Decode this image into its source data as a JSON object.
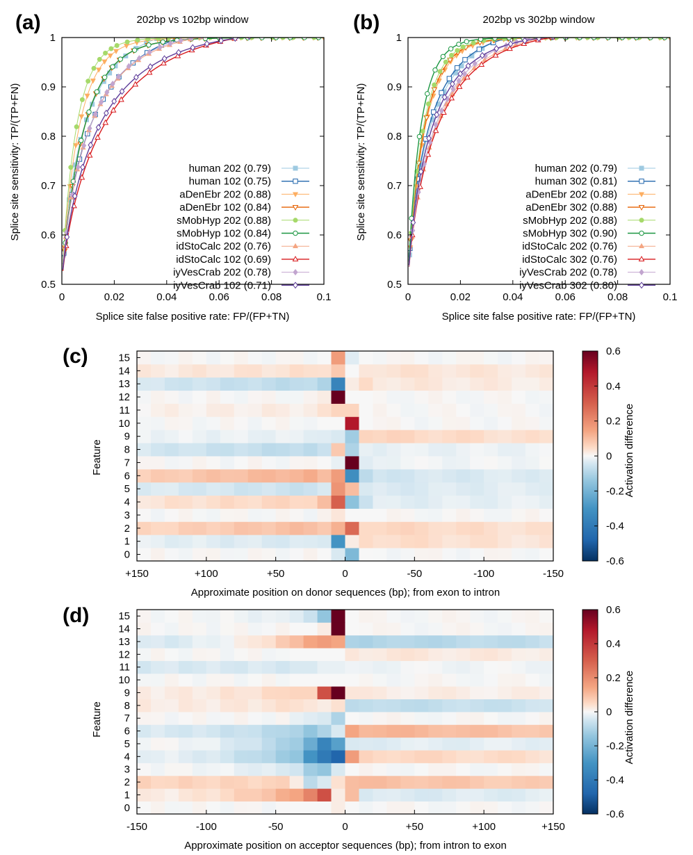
{
  "chart_data": [
    {
      "id": "a",
      "type": "line",
      "panel_label": "(a)",
      "title": "202bp vs 102bp window",
      "xlabel": "Splice site false positive rate: FP/(FP+TN)",
      "ylabel": "Splice site sensitivity: TP/(TP+FN)",
      "xlim": [
        0,
        0.1
      ],
      "ylim": [
        0.5,
        1
      ],
      "xticks": [
        "0",
        "0.02",
        "0.04",
        "0.06",
        "0.08",
        "0.1"
      ],
      "yticks": [
        "0.5",
        "0.6",
        "0.7",
        "0.8",
        "0.9",
        "1"
      ],
      "legend_position": "bottom-right",
      "series": [
        {
          "name": "human 202 (0.79)",
          "color": "#9ecae1",
          "marker": "square-filled",
          "width": 1,
          "k": 0.0095,
          "p": 0.77,
          "ymax": 1.03
        },
        {
          "name": "human 102 (0.75)",
          "color": "#2166ac",
          "marker": "square-open",
          "width": 1.4,
          "k": 0.0125,
          "p": 0.74,
          "ymax": 1.04
        },
        {
          "name": "aDenEbr 202 (0.88)",
          "color": "#fdae61",
          "marker": "tri-down-filled",
          "width": 1,
          "k": 0.0065,
          "p": 0.92,
          "ymax": 1.0
        },
        {
          "name": "aDenEbr 102 (0.84)",
          "color": "#e66101",
          "marker": "tri-down-open",
          "width": 1.4,
          "k": 0.0085,
          "p": 0.92,
          "ymax": 1.0
        },
        {
          "name": "sMobHyp 202 (0.88)",
          "color": "#a6d96a",
          "marker": "circle-filled",
          "width": 1,
          "k": 0.0055,
          "p": 0.92,
          "ymax": 1.0
        },
        {
          "name": "sMobHyp 102 (0.84)",
          "color": "#1a9641",
          "marker": "circle-open",
          "width": 1.4,
          "k": 0.0085,
          "p": 0.92,
          "ymax": 1.0
        },
        {
          "name": "idStoCalc 202 (0.76)",
          "color": "#f4a582",
          "marker": "tri-up-filled",
          "width": 1,
          "k": 0.0115,
          "p": 0.78,
          "ymax": 1.02
        },
        {
          "name": "idStoCalc 102 (0.69)",
          "color": "#d7191c",
          "marker": "tri-up-open",
          "width": 1.4,
          "k": 0.0175,
          "p": 0.78,
          "ymax": 1.03
        },
        {
          "name": "iyVesCrab 202 (0.78)",
          "color": "#c2a5cf",
          "marker": "diamond-filled",
          "width": 1,
          "k": 0.0115,
          "p": 0.8,
          "ymax": 1.02
        },
        {
          "name": "iyVesCrab 102 (0.71)",
          "color": "#5e3c99",
          "marker": "diamond-open",
          "width": 1.4,
          "k": 0.015,
          "p": 0.78,
          "ymax": 1.02
        }
      ]
    },
    {
      "id": "b",
      "type": "line",
      "panel_label": "(b)",
      "title": "202bp vs 302bp window",
      "xlabel": "Splice site false positive rate: FP/(FP+TN)",
      "ylabel": "Splice site sensitivity: TP/(TP+FN)",
      "xlim": [
        0,
        0.1
      ],
      "ylim": [
        0.5,
        1
      ],
      "xticks": [
        "0",
        "0.02",
        "0.04",
        "0.06",
        "0.08",
        "0.1"
      ],
      "yticks": [
        "0.5",
        "0.6",
        "0.7",
        "0.8",
        "0.9",
        "1"
      ],
      "legend_position": "bottom-right",
      "series": [
        {
          "name": "human 202 (0.79)",
          "color": "#9ecae1",
          "marker": "square-filled",
          "width": 1,
          "k": 0.0095,
          "p": 0.77,
          "ymax": 1.03
        },
        {
          "name": "human 302 (0.81)",
          "color": "#2166ac",
          "marker": "square-open",
          "width": 1.4,
          "k": 0.0085,
          "p": 0.78,
          "ymax": 1.02
        },
        {
          "name": "aDenEbr 202 (0.88)",
          "color": "#fdae61",
          "marker": "tri-down-filled",
          "width": 1,
          "k": 0.0065,
          "p": 0.92,
          "ymax": 1.0
        },
        {
          "name": "aDenEbr 302 (0.88)",
          "color": "#e66101",
          "marker": "tri-down-open",
          "width": 1.4,
          "k": 0.0062,
          "p": 0.92,
          "ymax": 1.0
        },
        {
          "name": "sMobHyp 202 (0.88)",
          "color": "#a6d96a",
          "marker": "circle-filled",
          "width": 1,
          "k": 0.0058,
          "p": 0.92,
          "ymax": 1.0
        },
        {
          "name": "sMobHyp 302 (0.90)",
          "color": "#1a9641",
          "marker": "circle-open",
          "width": 1.4,
          "k": 0.0048,
          "p": 0.92,
          "ymax": 1.0
        },
        {
          "name": "idStoCalc 202 (0.76)",
          "color": "#f4a582",
          "marker": "tri-up-filled",
          "width": 1,
          "k": 0.0115,
          "p": 0.78,
          "ymax": 1.02
        },
        {
          "name": "idStoCalc 302 (0.76)",
          "color": "#d7191c",
          "marker": "tri-up-open",
          "width": 1.4,
          "k": 0.012,
          "p": 0.78,
          "ymax": 1.02
        },
        {
          "name": "iyVesCrab 202 (0.78)",
          "color": "#c2a5cf",
          "marker": "diamond-filled",
          "width": 1,
          "k": 0.011,
          "p": 0.8,
          "ymax": 1.02
        },
        {
          "name": "iyVesCrab 302 (0.80)",
          "color": "#5e3c99",
          "marker": "diamond-open",
          "width": 1.4,
          "k": 0.0095,
          "p": 0.8,
          "ymax": 1.01
        }
      ]
    },
    {
      "id": "c",
      "type": "heatmap",
      "panel_label": "(c)",
      "xlabel": "Approximate position on donor sequences (bp); from exon to intron",
      "ylabel": "Feature",
      "xtick_labels": [
        "+150",
        "+100",
        "+50",
        "0",
        "-50",
        "-100",
        "-150"
      ],
      "xtick_positions": [
        150,
        100,
        50,
        0,
        -50,
        -100,
        -150
      ],
      "x_range": [
        150,
        -150
      ],
      "n_columns": 30,
      "center_column": 14,
      "rows": [
        "0",
        "1",
        "2",
        "3",
        "4",
        "5",
        "6",
        "7",
        "8",
        "9",
        "10",
        "11",
        "12",
        "13",
        "14",
        "15"
      ],
      "colorbar_label": "Activation difference",
      "colorbar_ticks": [
        "0.6",
        "0.4",
        "0.2",
        "0",
        "-0.2",
        "-0.4",
        "-0.6"
      ],
      "colorbar_range": [
        -0.6,
        0.6
      ],
      "row_profiles": [
        {
          "feature": 0,
          "left": 0.0,
          "c13": 0.0,
          "c14": -0.04,
          "c15": -0.18,
          "c16": 0.0,
          "right": 0.0,
          "slope": 0
        },
        {
          "feature": 1,
          "left": -0.04,
          "c13": -0.04,
          "c14": -0.3,
          "c15": 0.02,
          "c16": 0.05,
          "right": 0.05,
          "slope": 0
        },
        {
          "feature": 2,
          "left": 0.1,
          "c13": 0.08,
          "c14": 0.12,
          "c15": 0.28,
          "c16": 0.05,
          "right": 0.06,
          "slope": 0
        },
        {
          "feature": 3,
          "left": 0.0,
          "c13": 0.01,
          "c14": 0.03,
          "c15": 0.0,
          "c16": 0.0,
          "right": 0.0,
          "slope": 0
        },
        {
          "feature": 4,
          "left": 0.06,
          "c13": 0.1,
          "c14": 0.3,
          "c15": -0.15,
          "c16": -0.06,
          "right": -0.03,
          "slope": 0
        },
        {
          "feature": 5,
          "left": -0.06,
          "c13": -0.04,
          "c14": 0.18,
          "c15": 0.1,
          "c16": -0.04,
          "right": -0.04,
          "slope": 0
        },
        {
          "feature": 6,
          "left": 0.12,
          "c13": 0.1,
          "c14": 0.16,
          "c15": -0.32,
          "c16": -0.08,
          "right": -0.05,
          "slope": 0
        },
        {
          "feature": 7,
          "left": 0.0,
          "c13": 0.0,
          "c14": -0.02,
          "c15": 0.65,
          "c16": -0.03,
          "right": -0.01,
          "slope": 0
        },
        {
          "feature": 8,
          "left": -0.08,
          "c13": -0.06,
          "c14": 0.08,
          "c15": -0.1,
          "c16": -0.02,
          "right": -0.02,
          "slope": 0
        },
        {
          "feature": 9,
          "left": -0.02,
          "c13": -0.03,
          "c14": -0.04,
          "c15": -0.12,
          "c16": 0.06,
          "right": 0.06,
          "slope": 0
        },
        {
          "feature": 10,
          "left": 0.0,
          "c13": 0.0,
          "c14": 0.0,
          "c15": 0.48,
          "c16": 0.0,
          "right": 0.0,
          "slope": 0
        },
        {
          "feature": 11,
          "left": 0.02,
          "c13": 0.04,
          "c14": 0.06,
          "c15": 0.06,
          "c16": 0.0,
          "right": 0.0,
          "slope": 0
        },
        {
          "feature": 12,
          "left": 0.0,
          "c13": 0.02,
          "c14": 0.72,
          "c15": 0.0,
          "c16": 0.0,
          "right": 0.0,
          "slope": 0
        },
        {
          "feature": 13,
          "left": -0.08,
          "c13": -0.1,
          "c14": -0.36,
          "c15": 0.02,
          "c16": 0.05,
          "right": 0.03,
          "slope": 0
        },
        {
          "feature": 14,
          "left": 0.04,
          "c13": 0.04,
          "c14": 0.08,
          "c15": 0.0,
          "c16": 0.03,
          "right": 0.04,
          "slope": 0
        },
        {
          "feature": 15,
          "left": 0.0,
          "c13": 0.0,
          "c14": 0.16,
          "c15": -0.03,
          "c16": 0.0,
          "right": 0.0,
          "slope": 0
        }
      ]
    },
    {
      "id": "d",
      "type": "heatmap",
      "panel_label": "(d)",
      "xlabel": "Approximate position on acceptor sequences (bp); from intron to exon",
      "ylabel": "Feature",
      "xtick_labels": [
        "-150",
        "-100",
        "-50",
        "0",
        "+50",
        "+100",
        "+150"
      ],
      "xtick_positions": [
        -150,
        -100,
        -50,
        0,
        50,
        100,
        150
      ],
      "x_range": [
        -150,
        150
      ],
      "n_columns": 30,
      "center_column": 14,
      "rows": [
        "0",
        "1",
        "2",
        "3",
        "4",
        "5",
        "6",
        "7",
        "8",
        "9",
        "10",
        "11",
        "12",
        "13",
        "14",
        "15"
      ],
      "colorbar_label": "Activation difference",
      "colorbar_ticks": [
        "0.6",
        "0.4",
        "0.2",
        "0",
        "-0.2",
        "-0.4",
        "-0.6"
      ],
      "colorbar_range": [
        -0.6,
        0.6
      ],
      "row_profiles": [
        {
          "feature": 0,
          "left": 0.0,
          "c11": 0.0,
          "c12": 0.0,
          "c13": 0.0,
          "c14": 0.02,
          "c15": 0.0,
          "right": 0.0,
          "ramp": 0
        },
        {
          "feature": 1,
          "left": 0.02,
          "c11": 0.14,
          "c12": 0.22,
          "c13": 0.34,
          "c14": 0.02,
          "c15": 0.1,
          "right": -0.04,
          "ramp": 1
        },
        {
          "feature": 2,
          "left": 0.06,
          "c11": 0.02,
          "c12": -0.08,
          "c13": -0.04,
          "c14": 0.04,
          "c15": 0.1,
          "right": 0.1,
          "ramp": 0
        },
        {
          "feature": 3,
          "left": 0.0,
          "c11": -0.05,
          "c12": -0.12,
          "c13": -0.14,
          "c14": -0.04,
          "c15": 0.0,
          "right": 0.0,
          "ramp": 1
        },
        {
          "feature": 4,
          "left": -0.02,
          "c11": -0.14,
          "c12": -0.3,
          "c13": -0.4,
          "c14": -0.48,
          "c15": 0.16,
          "right": 0.06,
          "ramp": 1
        },
        {
          "feature": 5,
          "left": 0.0,
          "c11": -0.12,
          "c12": -0.22,
          "c13": -0.36,
          "c14": -0.26,
          "c15": -0.04,
          "right": -0.03,
          "ramp": 1
        },
        {
          "feature": 6,
          "left": -0.04,
          "c11": -0.1,
          "c12": -0.14,
          "c13": -0.1,
          "c14": -0.04,
          "c15": 0.14,
          "right": 0.12,
          "ramp": 1
        },
        {
          "feature": 7,
          "left": 0.0,
          "c11": -0.02,
          "c12": -0.03,
          "c13": -0.04,
          "c14": -0.1,
          "c15": 0.0,
          "right": 0.0,
          "ramp": 0
        },
        {
          "feature": 8,
          "left": 0.02,
          "c11": 0.04,
          "c12": 0.03,
          "c13": 0.02,
          "c14": 0.04,
          "c15": -0.08,
          "right": -0.08,
          "ramp": 1
        },
        {
          "feature": 9,
          "left": 0.02,
          "c11": 0.06,
          "c12": 0.06,
          "c13": 0.34,
          "c14": 0.7,
          "c15": 0.03,
          "right": 0.02,
          "ramp": 1
        },
        {
          "feature": 10,
          "left": 0.0,
          "c11": 0.0,
          "c12": 0.0,
          "c13": 0.0,
          "c14": 0.0,
          "c15": 0.0,
          "right": 0.0,
          "ramp": 0
        },
        {
          "feature": 11,
          "left": -0.04,
          "c11": -0.04,
          "c12": -0.04,
          "c13": -0.02,
          "c14": -0.02,
          "c15": -0.01,
          "right": -0.01,
          "ramp": 0
        },
        {
          "feature": 12,
          "left": 0.0,
          "c11": 0.0,
          "c12": 0.0,
          "c13": 0.0,
          "c14": 0.0,
          "c15": 0.03,
          "right": 0.03,
          "ramp": 0
        },
        {
          "feature": 13,
          "left": -0.04,
          "c11": 0.1,
          "c12": 0.14,
          "c13": 0.16,
          "c14": 0.14,
          "c15": -0.1,
          "right": -0.1,
          "ramp": 1
        },
        {
          "feature": 14,
          "left": 0.0,
          "c11": 0.0,
          "c12": 0.0,
          "c13": 0.02,
          "c14": 0.78,
          "c15": 0.0,
          "right": 0.0,
          "ramp": 0
        },
        {
          "feature": 15,
          "left": 0.0,
          "c11": -0.03,
          "c12": -0.06,
          "c13": -0.14,
          "c14": 0.6,
          "c15": 0.0,
          "right": 0.0,
          "ramp": 1
        }
      ]
    }
  ]
}
